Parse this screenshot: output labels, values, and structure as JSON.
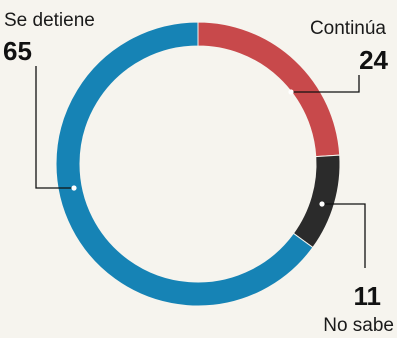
{
  "chart_data": {
    "type": "pie",
    "variant": "donut",
    "title": "",
    "total": 100,
    "start_angle_deg": 0,
    "direction": "clockwise",
    "slices": [
      {
        "key": "continua",
        "label": "Continúa",
        "value": 24,
        "value_label": "24",
        "color": "#c8494b"
      },
      {
        "key": "no_sabe",
        "label": "No sabe",
        "value": 11,
        "value_label": "11",
        "color": "#2b2b2b"
      },
      {
        "key": "se_detiene",
        "label": "Se detiene",
        "value": 65,
        "value_label": "65",
        "color": "#1683b5"
      }
    ],
    "legend": "none"
  }
}
